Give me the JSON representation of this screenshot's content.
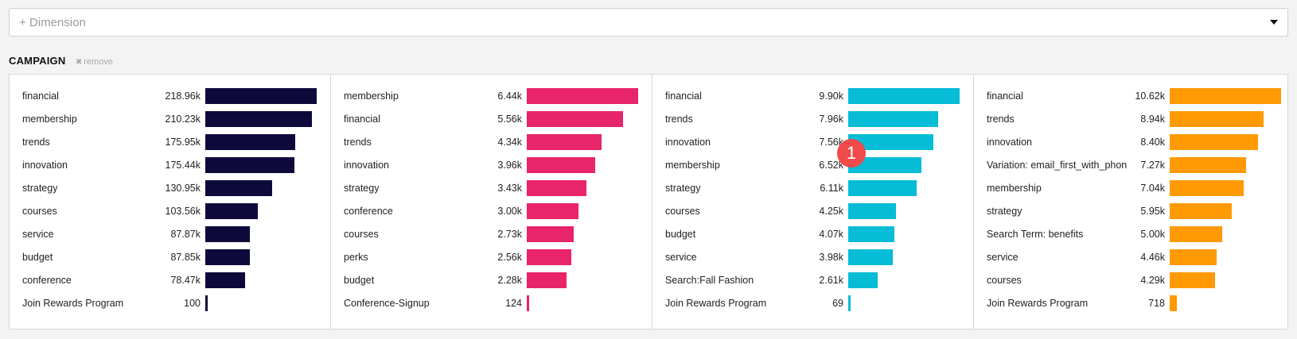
{
  "dimension_select": {
    "placeholder": "+ Dimension"
  },
  "section": {
    "title": "CAMPAIGN",
    "remove_label": "remove",
    "remove_icon": "✖"
  },
  "badge": {
    "label": "1",
    "color": "#f04a4a"
  },
  "panels": [
    {
      "color": "#0d0a3b",
      "max": 218.96,
      "rows": [
        {
          "label": "financial",
          "value": "218.96k",
          "amount": 218.96
        },
        {
          "label": "membership",
          "value": "210.23k",
          "amount": 210.23
        },
        {
          "label": "trends",
          "value": "175.95k",
          "amount": 175.95
        },
        {
          "label": "innovation",
          "value": "175.44k",
          "amount": 175.44
        },
        {
          "label": "strategy",
          "value": "130.95k",
          "amount": 130.95
        },
        {
          "label": "courses",
          "value": "103.56k",
          "amount": 103.56
        },
        {
          "label": "service",
          "value": "87.87k",
          "amount": 87.87
        },
        {
          "label": "budget",
          "value": "87.85k",
          "amount": 87.85
        },
        {
          "label": "conference",
          "value": "78.47k",
          "amount": 78.47
        },
        {
          "label": "Join Rewards Program",
          "value": "100",
          "amount": 0.1
        }
      ]
    },
    {
      "color": "#e8246a",
      "max": 6.44,
      "rows": [
        {
          "label": "membership",
          "value": "6.44k",
          "amount": 6.44
        },
        {
          "label": "financial",
          "value": "5.56k",
          "amount": 5.56
        },
        {
          "label": "trends",
          "value": "4.34k",
          "amount": 4.34
        },
        {
          "label": "innovation",
          "value": "3.96k",
          "amount": 3.96
        },
        {
          "label": "strategy",
          "value": "3.43k",
          "amount": 3.43
        },
        {
          "label": "conference",
          "value": "3.00k",
          "amount": 3.0
        },
        {
          "label": "courses",
          "value": "2.73k",
          "amount": 2.73
        },
        {
          "label": "perks",
          "value": "2.56k",
          "amount": 2.56
        },
        {
          "label": "budget",
          "value": "2.28k",
          "amount": 2.28
        },
        {
          "label": "Conference-Signup",
          "value": "124",
          "amount": 0.124
        }
      ]
    },
    {
      "color": "#06bcd6",
      "max": 9.9,
      "rows": [
        {
          "label": "financial",
          "value": "9.90k",
          "amount": 9.9
        },
        {
          "label": "trends",
          "value": "7.96k",
          "amount": 7.96
        },
        {
          "label": "innovation",
          "value": "7.56k",
          "amount": 7.56
        },
        {
          "label": "membership",
          "value": "6.52k",
          "amount": 6.52
        },
        {
          "label": "strategy",
          "value": "6.11k",
          "amount": 6.11
        },
        {
          "label": "courses",
          "value": "4.25k",
          "amount": 4.25
        },
        {
          "label": "budget",
          "value": "4.07k",
          "amount": 4.07
        },
        {
          "label": "service",
          "value": "3.98k",
          "amount": 3.98
        },
        {
          "label": "Search:Fall Fashion",
          "value": "2.61k",
          "amount": 2.61
        },
        {
          "label": "Join Rewards Program",
          "value": "69",
          "amount": 0.069
        }
      ]
    },
    {
      "color": "#ff9a05",
      "max": 10.62,
      "rows": [
        {
          "label": "financial",
          "value": "10.62k",
          "amount": 10.62
        },
        {
          "label": "trends",
          "value": "8.94k",
          "amount": 8.94
        },
        {
          "label": "innovation",
          "value": "8.40k",
          "amount": 8.4
        },
        {
          "label": "Variation: email_first_with_phon",
          "value": "7.27k",
          "amount": 7.27
        },
        {
          "label": "membership",
          "value": "7.04k",
          "amount": 7.04
        },
        {
          "label": "strategy",
          "value": "5.95k",
          "amount": 5.95
        },
        {
          "label": "Search Term: benefits",
          "value": "5.00k",
          "amount": 5.0
        },
        {
          "label": "service",
          "value": "4.46k",
          "amount": 4.46
        },
        {
          "label": "courses",
          "value": "4.29k",
          "amount": 4.29
        },
        {
          "label": "Join Rewards Program",
          "value": "718",
          "amount": 0.718
        }
      ]
    }
  ]
}
